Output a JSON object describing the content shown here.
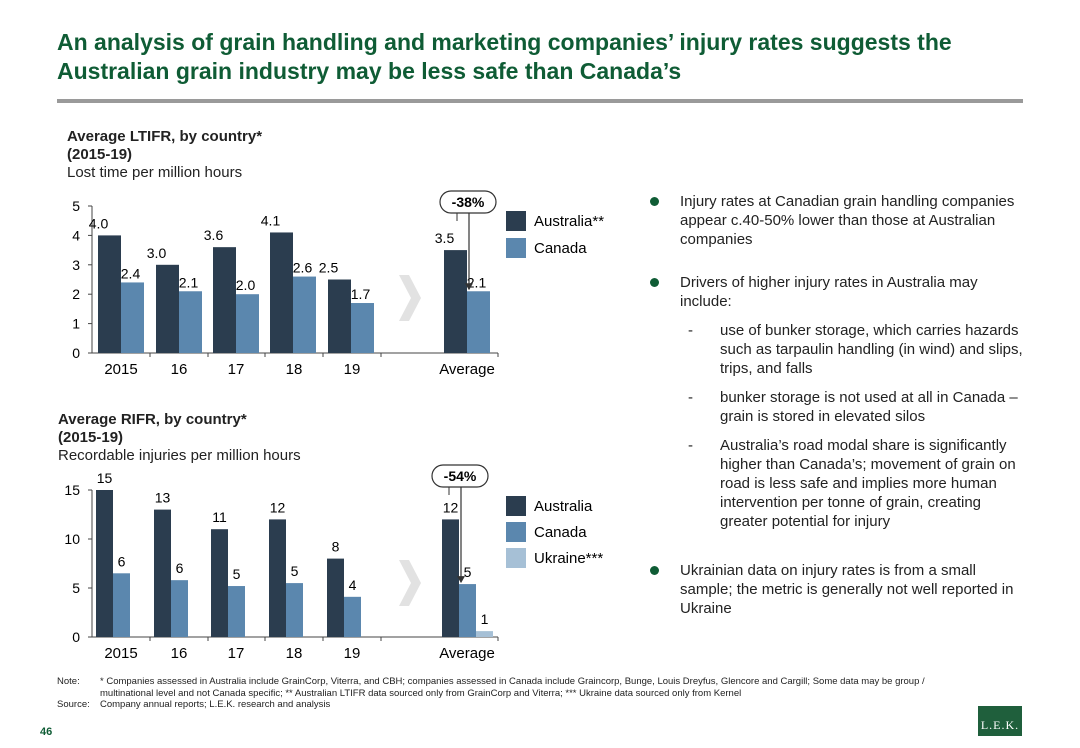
{
  "title": "An analysis of grain handling and marketing companies’ injury rates suggests the Australian grain industry may be less safe than Canada’s",
  "colors": {
    "australia": "#2b3d4f",
    "canada": "#5b87ae",
    "ukraine": "#a6c0d6",
    "brand": "#0f5c35"
  },
  "chart_data": [
    {
      "type": "bar",
      "title": "Average LTIFR, by country*",
      "subtitle": "(2015-19)",
      "ylabel": "Lost time per million hours",
      "categories": [
        "2015",
        "16",
        "17",
        "18",
        "19",
        "Average"
      ],
      "series": [
        {
          "name": "Australia**",
          "values": [
            4.0,
            3.0,
            3.6,
            4.1,
            2.5,
            3.5
          ]
        },
        {
          "name": "Canada",
          "values": [
            2.4,
            2.1,
            2.0,
            2.6,
            1.7,
            2.1
          ]
        }
      ],
      "value_labels": [
        [
          "4.0",
          "3.0",
          "3.6",
          "4.1",
          "2.5",
          "3.5"
        ],
        [
          "2.4",
          "2.1",
          "2.0",
          "2.6",
          "1.7",
          "2.1"
        ]
      ],
      "ylim": [
        0,
        5
      ],
      "yticks": [
        "0",
        "1",
        "2",
        "3",
        "4",
        "5"
      ],
      "callout": "-38%",
      "legend": "right"
    },
    {
      "type": "bar",
      "title": "Average RIFR, by country*",
      "subtitle": "(2015-19)",
      "ylabel": "Recordable injuries per million hours",
      "categories": [
        "2015",
        "16",
        "17",
        "18",
        "19",
        "Average"
      ],
      "series": [
        {
          "name": "Australia",
          "values": [
            15,
            13,
            11,
            12,
            8,
            12
          ]
        },
        {
          "name": "Canada",
          "values": [
            6.5,
            5.8,
            5.2,
            5.5,
            4.1,
            5.4
          ]
        },
        {
          "name": "Ukraine***",
          "values": [
            null,
            null,
            null,
            null,
            null,
            0.6
          ]
        }
      ],
      "value_labels": [
        [
          "15",
          "13",
          "11",
          "12",
          "8",
          "12"
        ],
        [
          "6",
          "6",
          "5",
          "5",
          "4",
          "5"
        ],
        [
          "",
          "",
          "",
          "",
          "",
          "1"
        ]
      ],
      "ylim": [
        0,
        15
      ],
      "yticks": [
        "0",
        "5",
        "10",
        "15"
      ],
      "callout": "-54%",
      "legend": "right"
    }
  ],
  "bullets": [
    {
      "text": "Injury rates at Canadian grain handling companies appear c.40-50% lower than those at Australian companies"
    },
    {
      "text": "Drivers of higher injury rates in Australia may include:",
      "subs": [
        "use of bunker storage, which carries hazards such as tarpaulin handling (in wind) and slips, trips, and falls",
        "bunker storage is not used at all in Canada – grain is stored in elevated silos",
        "Australia’s road modal share is significantly higher than Canada’s; movement of grain on road is less safe and implies more human intervention per tonne of grain, creating greater potential for injury"
      ]
    },
    {
      "text": "Ukrainian data on injury rates is from a small sample; the metric is generally not well reported in Ukraine"
    }
  ],
  "sub_dash": "-",
  "note": {
    "label": "Note:",
    "text": "* Companies assessed in Australia include GrainCorp, Viterra, and CBH; companies assessed in Canada include Graincorp, Bunge, Louis Dreyfus, Glencore and Cargill; Some data may be group / multinational level and not Canada specific; ** Australian LTIFR data sourced only from GrainCorp and Viterra; *** Ukraine data sourced only from Kernel"
  },
  "source": {
    "label": "Source:",
    "text": "Company annual reports; L.E.K. research and analysis"
  },
  "page_number": "46",
  "logo": "L.E.K."
}
